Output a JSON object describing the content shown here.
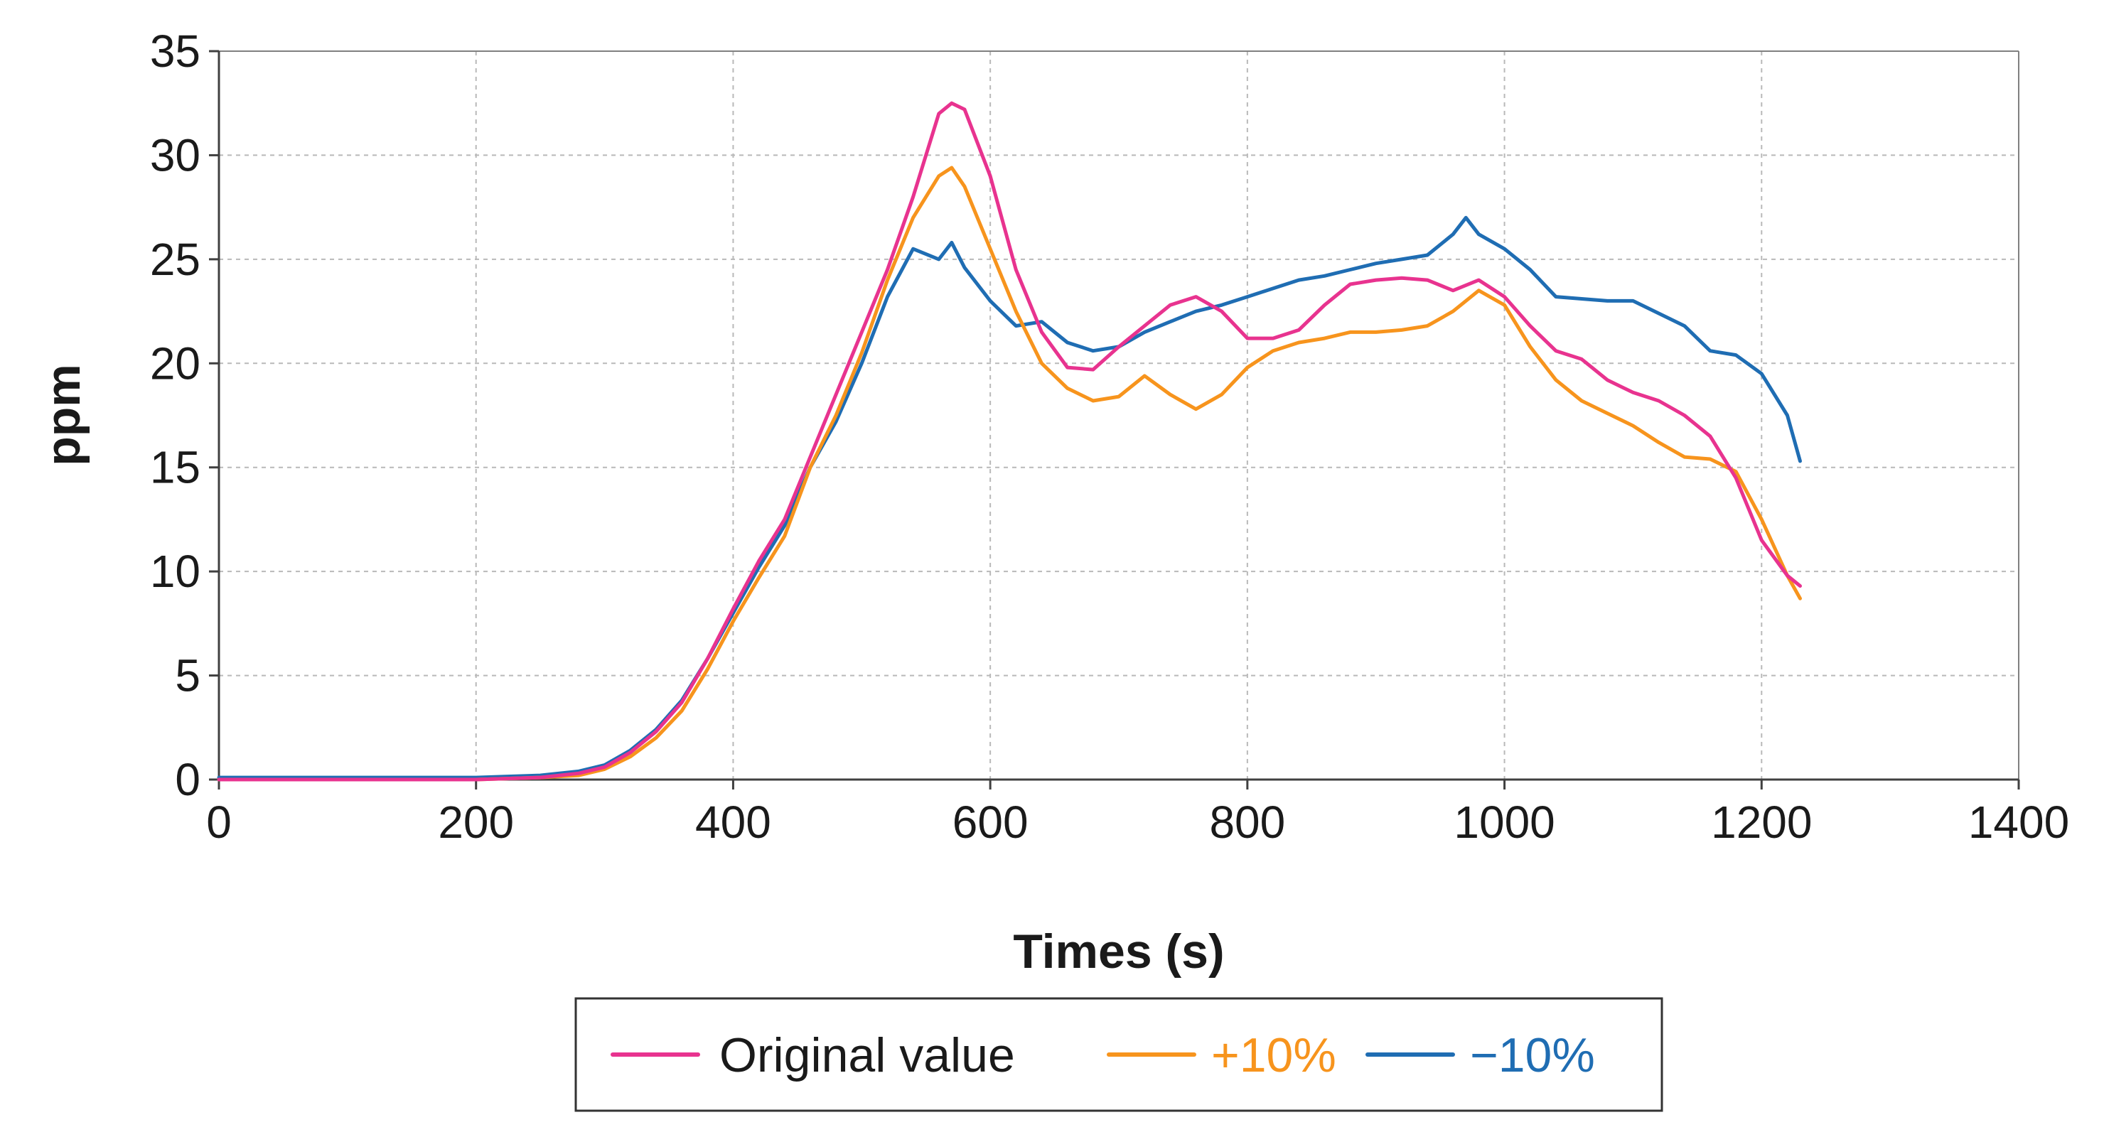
{
  "chart_data": {
    "type": "line",
    "title": "",
    "xlabel": "Times (s)",
    "ylabel": "ppm",
    "xlim": [
      0,
      1400
    ],
    "ylim": [
      0,
      35
    ],
    "xticks": [
      0,
      200,
      400,
      600,
      800,
      1000,
      1200,
      1400
    ],
    "yticks": [
      0,
      5,
      10,
      15,
      20,
      25,
      30,
      35
    ],
    "xtick_labels": [
      "0",
      "200",
      "400",
      "600",
      "800",
      "1000",
      "1200",
      "1400"
    ],
    "ytick_labels": [
      "0",
      "5",
      "10",
      "15",
      "20",
      "25",
      "30",
      "35"
    ],
    "grid": true,
    "legend_position": "bottom-center",
    "series": [
      {
        "name": "Original value",
        "color": "#e8338f",
        "legend_text_color": "#1a1a1a",
        "x": [
          0,
          100,
          200,
          250,
          280,
          300,
          320,
          340,
          360,
          380,
          400,
          420,
          440,
          460,
          480,
          500,
          520,
          540,
          560,
          570,
          580,
          600,
          620,
          640,
          660,
          680,
          700,
          720,
          740,
          760,
          780,
          800,
          820,
          840,
          860,
          880,
          900,
          920,
          940,
          960,
          980,
          1000,
          1020,
          1040,
          1060,
          1080,
          1100,
          1120,
          1140,
          1160,
          1180,
          1200,
          1220,
          1230
        ],
        "y": [
          0,
          0,
          0,
          0.1,
          0.3,
          0.6,
          1.3,
          2.3,
          3.7,
          5.8,
          8.2,
          10.5,
          12.5,
          15.5,
          18.5,
          21.5,
          24.5,
          28.0,
          32.0,
          32.5,
          32.2,
          29.0,
          24.5,
          21.5,
          19.8,
          19.7,
          20.8,
          21.8,
          22.8,
          23.2,
          22.5,
          21.2,
          21.2,
          21.6,
          22.8,
          23.8,
          24.0,
          24.1,
          24.0,
          23.5,
          24.0,
          23.2,
          21.8,
          20.6,
          20.2,
          19.2,
          18.6,
          18.2,
          17.5,
          16.5,
          14.5,
          11.5,
          9.8,
          9.3
        ]
      },
      {
        "name": "+10%",
        "color": "#f7941d",
        "legend_text_color": "#f7941d",
        "x": [
          0,
          100,
          200,
          250,
          280,
          300,
          320,
          340,
          360,
          380,
          400,
          420,
          440,
          460,
          480,
          500,
          520,
          540,
          560,
          570,
          580,
          600,
          620,
          640,
          660,
          680,
          700,
          720,
          740,
          760,
          780,
          800,
          820,
          840,
          860,
          880,
          900,
          920,
          940,
          960,
          980,
          1000,
          1020,
          1040,
          1060,
          1080,
          1100,
          1120,
          1140,
          1160,
          1180,
          1200,
          1220,
          1230
        ],
        "y": [
          0,
          0,
          0,
          0.1,
          0.2,
          0.5,
          1.1,
          2.0,
          3.3,
          5.3,
          7.6,
          9.7,
          11.7,
          15.0,
          17.5,
          20.5,
          24.0,
          27.0,
          29.0,
          29.4,
          28.5,
          25.5,
          22.5,
          20.0,
          18.8,
          18.2,
          18.4,
          19.4,
          18.5,
          17.8,
          18.5,
          19.8,
          20.6,
          21.0,
          21.2,
          21.5,
          21.5,
          21.6,
          21.8,
          22.5,
          23.5,
          22.8,
          20.8,
          19.2,
          18.2,
          17.6,
          17.0,
          16.2,
          15.5,
          15.4,
          14.8,
          12.5,
          9.8,
          8.7
        ]
      },
      {
        "name": "−10%",
        "color": "#1f6db3",
        "legend_text_color": "#1f6db3",
        "x": [
          0,
          100,
          200,
          250,
          280,
          300,
          320,
          340,
          360,
          380,
          400,
          420,
          440,
          460,
          480,
          500,
          520,
          540,
          560,
          570,
          580,
          600,
          620,
          640,
          660,
          680,
          700,
          720,
          740,
          760,
          780,
          800,
          820,
          840,
          860,
          880,
          900,
          920,
          940,
          960,
          970,
          980,
          1000,
          1020,
          1040,
          1060,
          1080,
          1100,
          1120,
          1140,
          1160,
          1180,
          1200,
          1220,
          1230
        ],
        "y": [
          0.1,
          0.1,
          0.1,
          0.2,
          0.4,
          0.7,
          1.4,
          2.4,
          3.8,
          5.8,
          8.0,
          10.2,
          12.2,
          15.0,
          17.2,
          20.0,
          23.2,
          25.5,
          25.0,
          25.8,
          24.6,
          23.0,
          21.8,
          22.0,
          21.0,
          20.6,
          20.8,
          21.5,
          22.0,
          22.5,
          22.8,
          23.2,
          23.6,
          24.0,
          24.2,
          24.5,
          24.8,
          25.0,
          25.2,
          26.2,
          27.0,
          26.2,
          25.5,
          24.5,
          23.2,
          23.1,
          23.0,
          23.0,
          22.4,
          21.8,
          20.6,
          20.4,
          19.5,
          17.5,
          15.3
        ]
      }
    ]
  }
}
